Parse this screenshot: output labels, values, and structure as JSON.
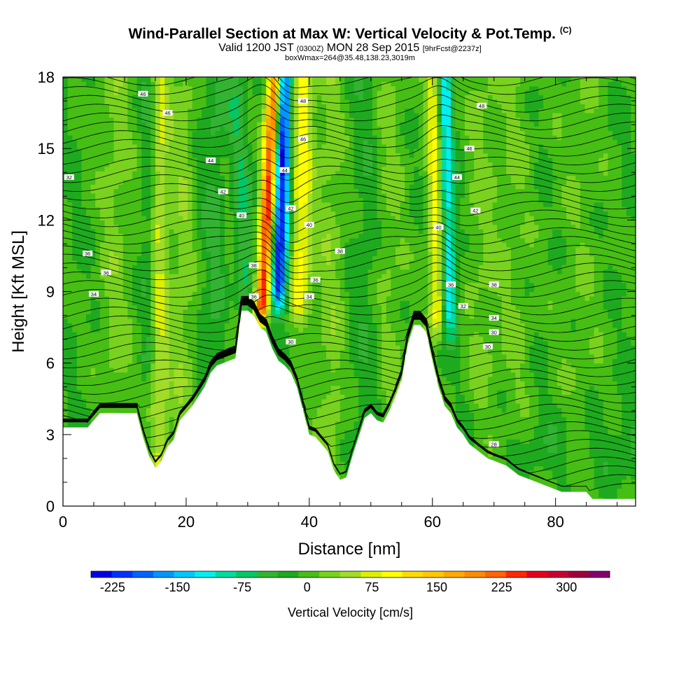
{
  "header": {
    "title": "Wind-Parallel Section at Max W: Vertical Velocity & Pot.Temp.",
    "title_mark": "(C)",
    "sub_a": "Valid 1200 JST",
    "sub_b": "(0300Z)",
    "sub_c": "MON 28 Sep 2015",
    "sub_d": "[9hrFcst@2237z]",
    "line3": "boxWmax=264@35.48,138.23,3019m"
  },
  "chart_data": {
    "type": "heatmap",
    "xlabel": "Distance [nm]",
    "ylabel": "Height [Kft MSL]",
    "xlim": [
      0,
      93
    ],
    "ylim": [
      0,
      18
    ],
    "x_ticks": [
      0,
      20,
      40,
      60,
      80
    ],
    "y_ticks": [
      0,
      3,
      6,
      9,
      12,
      15,
      18
    ],
    "colorbar": {
      "label": "Vertical Velocity [cm/s]",
      "tick_labels": [
        "-225",
        "-150",
        "-75",
        "0",
        "75",
        "150",
        "225",
        "300"
      ],
      "tick_values": [
        -225,
        -150,
        -75,
        0,
        75,
        150,
        225,
        300
      ],
      "range": [
        -250,
        350
      ],
      "bin_width": 25,
      "colors": [
        "#0000e6",
        "#0032ff",
        "#0064ff",
        "#0096ff",
        "#00c8ff",
        "#00f0f0",
        "#00dca0",
        "#00c864",
        "#32b432",
        "#1eaa1e",
        "#46be14",
        "#78d21e",
        "#a0dc28",
        "#dcf000",
        "#ffff00",
        "#ffdc00",
        "#ffc800",
        "#ffaa00",
        "#ff8c00",
        "#ff6400",
        "#ff2800",
        "#e6001e",
        "#c80032",
        "#a0003c",
        "#82006e"
      ]
    },
    "series": [
      {
        "name": "Vertical Velocity",
        "description_axis": "max updraft near x=32 nm",
        "peak_x": 32,
        "peak_value": 264
      },
      {
        "name": "Pot.Temp.",
        "contour_labels": [
          "30",
          "32",
          "34",
          "36",
          "38",
          "40",
          "42",
          "44",
          "46",
          "48"
        ]
      }
    ],
    "terrain_kft": [
      [
        0,
        3.3
      ],
      [
        4,
        3.3
      ],
      [
        5,
        3.6
      ],
      [
        6,
        3.9
      ],
      [
        10,
        3.9
      ],
      [
        12,
        3.9
      ],
      [
        13,
        2.9
      ],
      [
        14,
        2.1
      ],
      [
        15,
        1.6
      ],
      [
        16,
        1.9
      ],
      [
        17,
        2.5
      ],
      [
        18,
        2.8
      ],
      [
        19,
        3.6
      ],
      [
        20,
        3.9
      ],
      [
        21,
        4.2
      ],
      [
        22,
        4.6
      ],
      [
        23,
        5.0
      ],
      [
        24,
        5.6
      ],
      [
        25,
        5.9
      ],
      [
        26,
        6.0
      ],
      [
        27,
        6.1
      ],
      [
        28,
        6.2
      ],
      [
        29,
        8.2
      ],
      [
        30,
        8.2
      ],
      [
        31,
        8.0
      ],
      [
        32,
        7.5
      ],
      [
        33,
        7.3
      ],
      [
        34,
        6.6
      ],
      [
        35,
        6.1
      ],
      [
        36,
        5.9
      ],
      [
        37,
        5.6
      ],
      [
        38,
        5.0
      ],
      [
        39,
        4.0
      ],
      [
        40,
        3.0
      ],
      [
        41,
        2.9
      ],
      [
        42,
        2.6
      ],
      [
        43,
        2.3
      ],
      [
        44,
        1.5
      ],
      [
        45,
        1.1
      ],
      [
        46,
        1.2
      ],
      [
        47,
        2.1
      ],
      [
        48,
        2.9
      ],
      [
        49,
        3.7
      ],
      [
        50,
        3.9
      ],
      [
        51,
        3.6
      ],
      [
        52,
        3.5
      ],
      [
        53,
        4.0
      ],
      [
        54,
        4.6
      ],
      [
        55,
        5.3
      ],
      [
        56,
        6.8
      ],
      [
        57,
        7.6
      ],
      [
        58,
        7.6
      ],
      [
        59,
        7.3
      ],
      [
        60,
        6.1
      ],
      [
        61,
        5.0
      ],
      [
        62,
        4.2
      ],
      [
        63,
        3.9
      ],
      [
        64,
        3.3
      ],
      [
        65,
        3.0
      ],
      [
        66,
        2.6
      ],
      [
        67,
        2.4
      ],
      [
        68,
        2.2
      ],
      [
        69,
        2.0
      ],
      [
        70,
        1.9
      ],
      [
        71,
        1.8
      ],
      [
        72,
        1.7
      ],
      [
        73,
        1.5
      ],
      [
        74,
        1.3
      ],
      [
        75,
        1.2
      ],
      [
        76,
        1.1
      ],
      [
        77,
        1.0
      ],
      [
        78,
        0.9
      ],
      [
        79,
        0.8
      ],
      [
        80,
        0.7
      ],
      [
        81,
        0.6
      ],
      [
        82,
        0.6
      ],
      [
        84,
        0.6
      ],
      [
        85,
        0.6
      ],
      [
        86,
        0.3
      ],
      [
        88,
        0.3
      ],
      [
        93,
        0.3
      ]
    ]
  }
}
